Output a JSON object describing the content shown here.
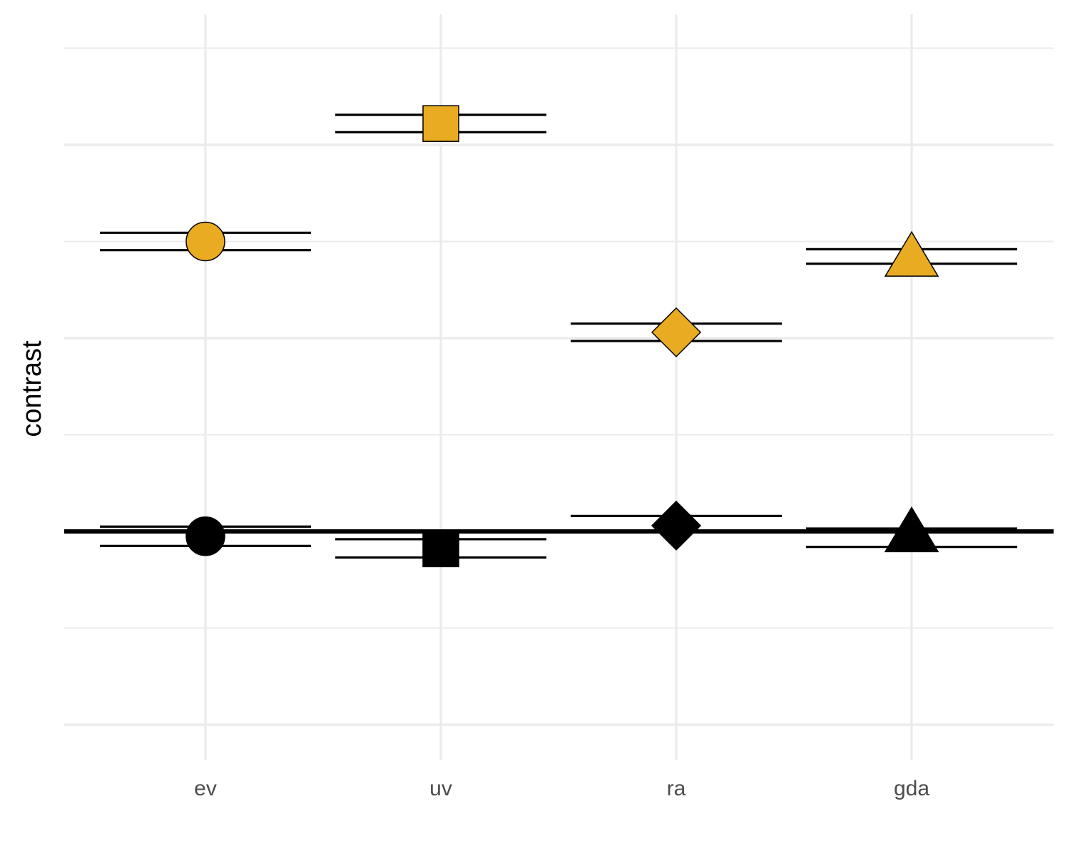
{
  "chart_data": {
    "type": "scatter",
    "ylabel": "contrast",
    "categories": [
      "ev",
      "uv",
      "ra",
      "gda"
    ],
    "ylim": [
      -1.0,
      2.5
    ],
    "y_gridlines_major": [
      -1,
      0,
      1,
      2
    ],
    "y_gridlines_minor": [
      -0.5,
      0.5,
      1.5,
      2.5
    ],
    "reference_line_y": 0,
    "series": [
      {
        "color": "#E9AB22",
        "points": [
          {
            "x": "ev",
            "y": 1.5,
            "lower": 1.455,
            "upper": 1.545,
            "shape": "circle"
          },
          {
            "x": "uv",
            "y": 2.11,
            "lower": 2.065,
            "upper": 2.155,
            "shape": "square"
          },
          {
            "x": "ra",
            "y": 1.03,
            "lower": 0.985,
            "upper": 1.075,
            "shape": "diamond"
          },
          {
            "x": "gda",
            "y": 1.42,
            "lower": 1.385,
            "upper": 1.46,
            "shape": "triangle"
          }
        ]
      },
      {
        "color": "#000000",
        "points": [
          {
            "x": "ev",
            "y": -0.025,
            "lower": -0.075,
            "upper": 0.025,
            "shape": "circle"
          },
          {
            "x": "uv",
            "y": -0.09,
            "lower": -0.135,
            "upper": -0.04,
            "shape": "square"
          },
          {
            "x": "ra",
            "y": 0.03,
            "lower": -0.005,
            "upper": 0.08,
            "shape": "diamond"
          },
          {
            "x": "gda",
            "y": -0.005,
            "lower": -0.08,
            "upper": 0.015,
            "shape": "triangle"
          }
        ]
      }
    ]
  }
}
